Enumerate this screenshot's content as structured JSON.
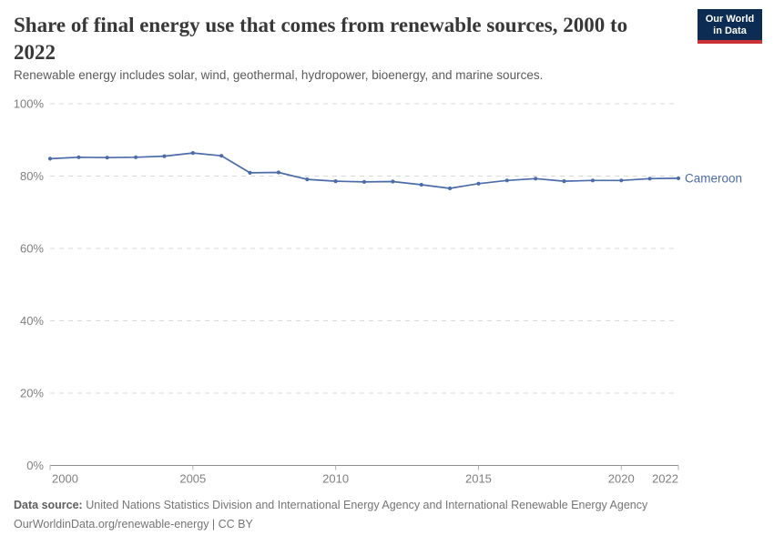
{
  "header": {
    "title": "Share of final energy use that comes from renewable sources, 2000 to 2022",
    "subtitle": "Renewable energy includes solar, wind, geothermal, hydropower, bioenergy, and marine sources.",
    "logo": {
      "line1": "Our World",
      "line2": "in Data"
    }
  },
  "colors": {
    "series_line": "#4c6ba9",
    "logo_background": "#0c2c53",
    "logo_accent": "#cb3238",
    "gridline": "#d9d9d9",
    "axis_line": "#8f8f8f",
    "tick_label": "#7f7f7f"
  },
  "chart_data": {
    "type": "line",
    "title": "Share of final energy use that comes from renewable sources, 2000 to 2022",
    "xlabel": "",
    "ylabel": "",
    "x": [
      2000,
      2001,
      2002,
      2003,
      2004,
      2005,
      2006,
      2007,
      2008,
      2009,
      2010,
      2011,
      2012,
      2013,
      2014,
      2015,
      2016,
      2017,
      2018,
      2019,
      2020,
      2021,
      2022
    ],
    "series": [
      {
        "name": "Cameroon",
        "color": "#4c6ba9",
        "values": [
          84.8,
          85.2,
          85.1,
          85.2,
          85.5,
          86.4,
          85.6,
          80.9,
          81.0,
          79.1,
          78.6,
          78.4,
          78.5,
          77.6,
          76.6,
          77.9,
          78.8,
          79.3,
          78.6,
          78.8,
          78.8,
          79.3,
          79.4
        ]
      }
    ],
    "xlim": [
      2000,
      2022
    ],
    "ylim": [
      0,
      100
    ],
    "y_ticks": [
      0,
      20,
      40,
      60,
      80,
      100
    ],
    "y_tick_suffix": "%",
    "x_ticks": [
      2000,
      2005,
      2010,
      2015,
      2020,
      2022
    ],
    "grid": "horizontal-dashed",
    "legend": "end-of-line-label"
  },
  "footer": {
    "source_label": "Data source:",
    "source_text": "United Nations Statistics Division and International Energy Agency and International Renewable Energy Agency",
    "link_line": "OurWorldinData.org/renewable-energy | CC BY"
  }
}
